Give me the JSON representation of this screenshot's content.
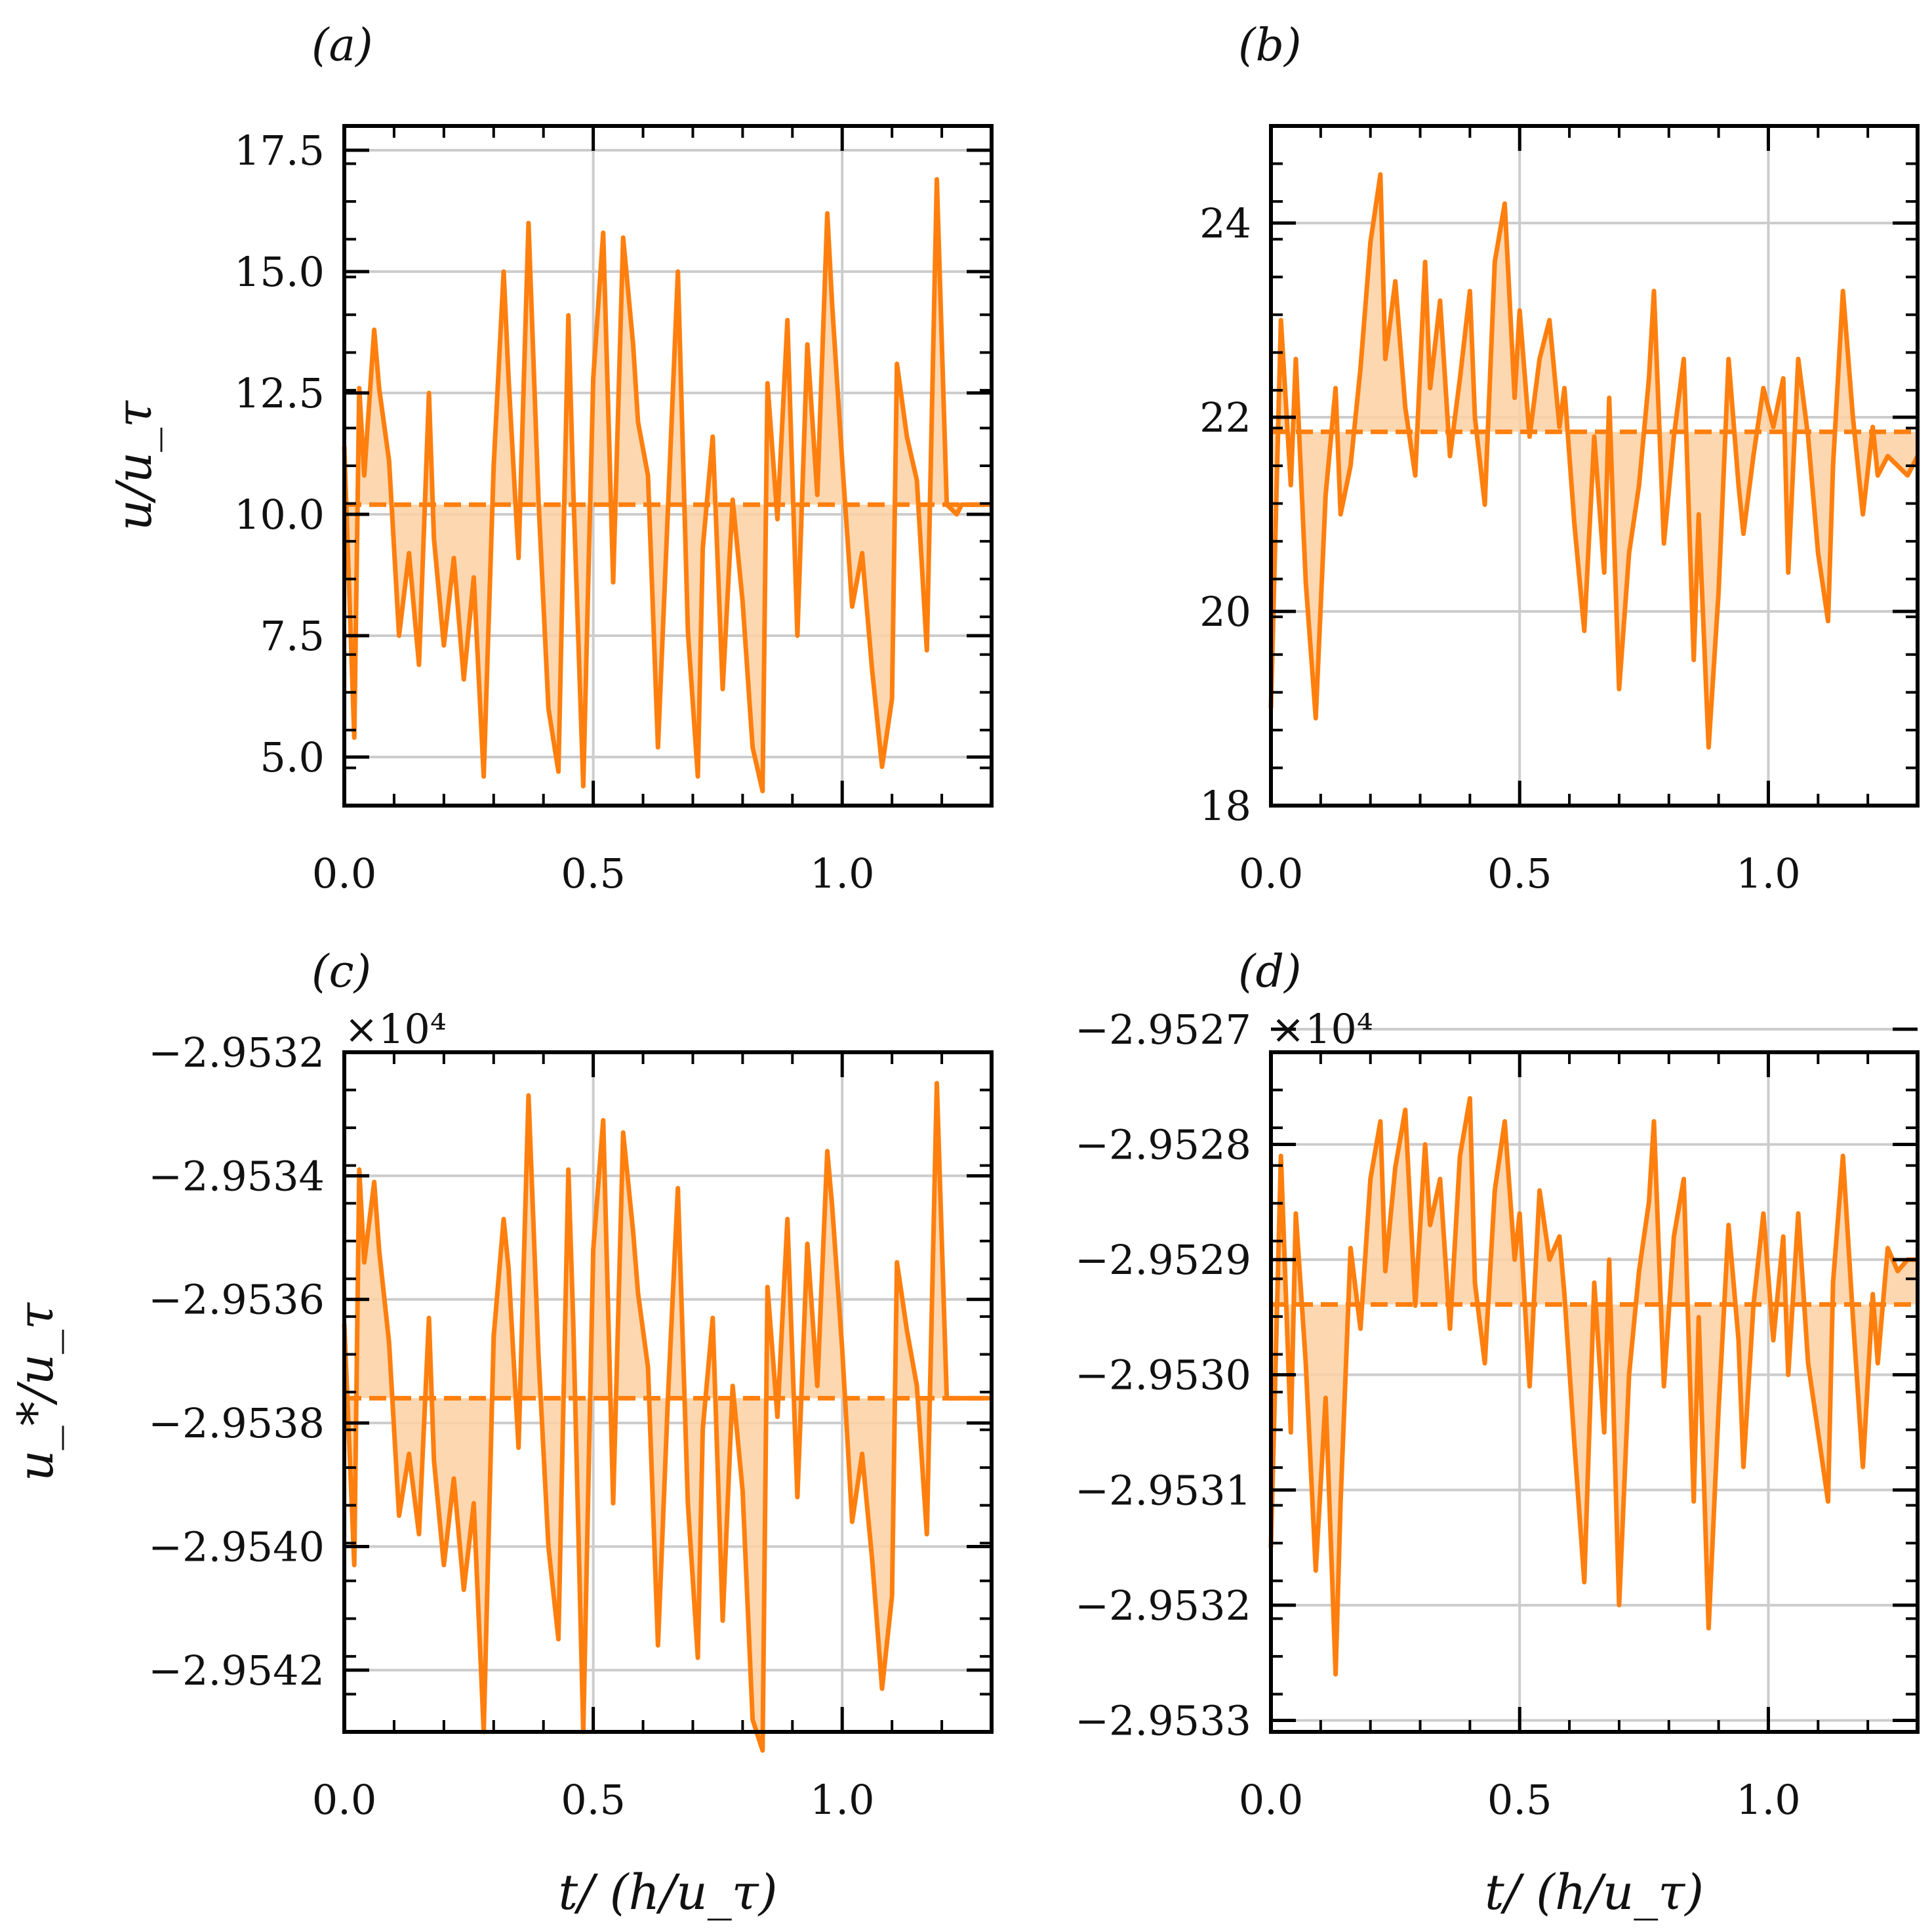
{
  "figure": {
    "series_color": "#ff7f0e",
    "fill_color": "#fdd0a2",
    "grid_color": "#cccccc",
    "frame_color": "#000000"
  },
  "chart_data": [
    {
      "panel": "(a)",
      "type": "line",
      "x_label": "",
      "y_label": "u/u_τ",
      "xlim": [
        0.0,
        1.3
      ],
      "ylim": [
        4.0,
        18.0
      ],
      "x_ticks": [
        0.0,
        0.5,
        1.0
      ],
      "x_tick_labels": [
        "0.0",
        "0.5",
        "1.0"
      ],
      "y_ticks": [
        5.0,
        7.5,
        10.0,
        12.5,
        15.0,
        17.5
      ],
      "y_tick_labels": [
        "5.0",
        "7.5",
        "10.0",
        "12.5",
        "15.0",
        "17.5"
      ],
      "offset_label": "",
      "mean": 10.2,
      "grid": true,
      "series": [
        {
          "name": "u/u_τ",
          "x": [
            0.0,
            0.02,
            0.03,
            0.04,
            0.06,
            0.07,
            0.09,
            0.11,
            0.13,
            0.15,
            0.17,
            0.18,
            0.2,
            0.22,
            0.24,
            0.26,
            0.28,
            0.3,
            0.32,
            0.33,
            0.35,
            0.37,
            0.39,
            0.41,
            0.43,
            0.45,
            0.46,
            0.48,
            0.5,
            0.52,
            0.54,
            0.56,
            0.58,
            0.59,
            0.61,
            0.63,
            0.65,
            0.67,
            0.69,
            0.71,
            0.72,
            0.74,
            0.76,
            0.78,
            0.8,
            0.82,
            0.84,
            0.85,
            0.87,
            0.89,
            0.91,
            0.93,
            0.95,
            0.97,
            0.98,
            1.0,
            1.02,
            1.04,
            1.06,
            1.08,
            1.1,
            1.11,
            1.13,
            1.15,
            1.17,
            1.19,
            1.21,
            1.23,
            1.24,
            1.26,
            1.28,
            1.3
          ],
          "y": [
            11.4,
            5.4,
            12.6,
            10.8,
            13.8,
            12.6,
            11.1,
            7.5,
            9.2,
            6.9,
            12.5,
            9.5,
            7.3,
            9.1,
            6.6,
            8.7,
            4.6,
            11.0,
            15.0,
            12.8,
            9.1,
            16.0,
            10.3,
            6.0,
            4.7,
            14.1,
            10.5,
            4.4,
            12.8,
            15.8,
            8.6,
            15.7,
            13.5,
            11.9,
            10.8,
            5.2,
            10.1,
            15.0,
            7.6,
            4.6,
            9.3,
            11.6,
            6.4,
            10.3,
            8.2,
            5.2,
            4.3,
            12.7,
            9.9,
            14.0,
            7.5,
            13.5,
            10.4,
            16.2,
            14.3,
            11.1,
            8.1,
            9.2,
            6.8,
            4.8,
            6.2,
            13.1,
            11.6,
            10.7,
            7.2,
            16.9,
            10.2,
            10.0,
            10.2,
            10.2,
            10.2,
            10.2
          ]
        }
      ]
    },
    {
      "panel": "(b)",
      "type": "line",
      "x_label": "",
      "y_label": "",
      "xlim": [
        0.0,
        1.3
      ],
      "ylim": [
        18.0,
        25.0
      ],
      "x_ticks": [
        0.0,
        0.5,
        1.0
      ],
      "x_tick_labels": [
        "0.0",
        "0.5",
        "1.0"
      ],
      "y_ticks": [
        18,
        20,
        22,
        24
      ],
      "y_tick_labels": [
        "18",
        "20",
        "22",
        "24"
      ],
      "offset_label": "",
      "mean": 21.85,
      "grid": true,
      "series": [
        {
          "name": "u/u_τ",
          "x": [
            0.0,
            0.02,
            0.04,
            0.05,
            0.07,
            0.09,
            0.11,
            0.13,
            0.14,
            0.16,
            0.18,
            0.2,
            0.22,
            0.23,
            0.25,
            0.27,
            0.29,
            0.31,
            0.32,
            0.34,
            0.36,
            0.38,
            0.4,
            0.41,
            0.43,
            0.45,
            0.47,
            0.49,
            0.5,
            0.52,
            0.54,
            0.56,
            0.58,
            0.59,
            0.61,
            0.63,
            0.65,
            0.67,
            0.68,
            0.7,
            0.72,
            0.74,
            0.76,
            0.77,
            0.79,
            0.81,
            0.83,
            0.85,
            0.86,
            0.88,
            0.9,
            0.92,
            0.94,
            0.95,
            0.97,
            0.99,
            1.01,
            1.03,
            1.04,
            1.06,
            1.08,
            1.1,
            1.12,
            1.13,
            1.15,
            1.17,
            1.19,
            1.21,
            1.22,
            1.24,
            1.26,
            1.28,
            1.3
          ],
          "y": [
            19.0,
            23.0,
            21.3,
            22.6,
            20.3,
            18.9,
            21.2,
            22.3,
            21.0,
            21.5,
            22.5,
            23.8,
            24.5,
            22.6,
            23.4,
            22.1,
            21.4,
            23.6,
            22.3,
            23.2,
            21.6,
            22.4,
            23.3,
            22.0,
            21.1,
            23.6,
            24.2,
            22.2,
            23.1,
            21.8,
            22.6,
            23.0,
            21.9,
            22.3,
            20.9,
            19.8,
            21.8,
            20.4,
            22.2,
            19.2,
            20.6,
            21.3,
            22.4,
            23.3,
            20.7,
            21.8,
            22.6,
            19.5,
            21.0,
            18.6,
            20.2,
            22.6,
            21.3,
            20.8,
            21.6,
            22.3,
            21.9,
            22.4,
            20.4,
            22.6,
            21.8,
            20.6,
            19.9,
            21.5,
            23.3,
            22.0,
            21.0,
            21.9,
            21.4,
            21.6,
            21.5,
            21.4,
            21.6
          ]
        }
      ]
    },
    {
      "panel": "(c)",
      "type": "line",
      "x_label": "t/ (h/u_τ)",
      "y_label": "u_*/u_τ",
      "xlim": [
        0.0,
        1.3
      ],
      "ylim": [
        -2.9543,
        -2.9532
      ],
      "x_ticks": [
        0.0,
        0.5,
        1.0
      ],
      "x_tick_labels": [
        "0.0",
        "0.5",
        "1.0"
      ],
      "y_ticks": [
        -2.9542,
        -2.954,
        -2.9538,
        -2.9536,
        -2.9534,
        -2.9532
      ],
      "y_tick_labels": [
        "−2.9542",
        "−2.9540",
        "−2.9538",
        "−2.9536",
        "−2.9534",
        "−2.9532"
      ],
      "offset_label": "×10⁴",
      "mean": -2.95376,
      "grid": true,
      "series": [
        {
          "name": "u_*/u_τ",
          "x": [
            0.0,
            0.02,
            0.03,
            0.04,
            0.06,
            0.07,
            0.09,
            0.11,
            0.13,
            0.15,
            0.17,
            0.18,
            0.2,
            0.22,
            0.24,
            0.26,
            0.28,
            0.3,
            0.32,
            0.33,
            0.35,
            0.37,
            0.39,
            0.41,
            0.43,
            0.45,
            0.46,
            0.48,
            0.5,
            0.52,
            0.54,
            0.56,
            0.58,
            0.59,
            0.61,
            0.63,
            0.65,
            0.67,
            0.69,
            0.71,
            0.72,
            0.74,
            0.76,
            0.78,
            0.8,
            0.82,
            0.84,
            0.85,
            0.87,
            0.89,
            0.91,
            0.93,
            0.95,
            0.97,
            0.98,
            1.0,
            1.02,
            1.04,
            1.06,
            1.08,
            1.1,
            1.11,
            1.13,
            1.15,
            1.17,
            1.19,
            1.21,
            1.23,
            1.24,
            1.26,
            1.28,
            1.3
          ],
          "y": [
            -2.95364,
            -2.95403,
            -2.95339,
            -2.95354,
            -2.95341,
            -2.95352,
            -2.95367,
            -2.95395,
            -2.95385,
            -2.95398,
            -2.95363,
            -2.95386,
            -2.95403,
            -2.95389,
            -2.95407,
            -2.95393,
            -2.9543,
            -2.95366,
            -2.95347,
            -2.95355,
            -2.95384,
            -2.95327,
            -2.95369,
            -2.954,
            -2.95415,
            -2.95339,
            -2.95364,
            -2.9543,
            -2.95352,
            -2.95331,
            -2.95393,
            -2.95333,
            -2.95349,
            -2.95359,
            -2.95371,
            -2.95416,
            -2.95376,
            -2.95342,
            -2.95393,
            -2.95418,
            -2.95381,
            -2.95363,
            -2.95412,
            -2.95374,
            -2.95391,
            -2.95428,
            -2.95433,
            -2.95358,
            -2.95379,
            -2.95347,
            -2.95392,
            -2.95351,
            -2.95374,
            -2.95336,
            -2.95345,
            -2.95368,
            -2.95396,
            -2.95385,
            -2.95402,
            -2.95423,
            -2.95408,
            -2.95354,
            -2.95365,
            -2.95374,
            -2.95398,
            -2.95325,
            -2.95376,
            -2.95376,
            -2.95376,
            -2.95376,
            -2.95376,
            -2.95376
          ]
        }
      ]
    },
    {
      "panel": "(d)",
      "type": "line",
      "x_label": "t/ (h/u_τ)",
      "y_label": "",
      "xlim": [
        0.0,
        1.3
      ],
      "ylim": [
        -2.95331,
        -2.95272
      ],
      "x_ticks": [
        0.0,
        0.5,
        1.0
      ],
      "x_tick_labels": [
        "0.0",
        "0.5",
        "1.0"
      ],
      "y_ticks": [
        -2.9533,
        -2.9532,
        -2.9531,
        -2.953,
        -2.9529,
        -2.9528,
        -2.9527
      ],
      "y_tick_labels": [
        "−2.9533",
        "−2.9532",
        "−2.9531",
        "−2.9530",
        "−2.9529",
        "−2.9528",
        "−2.9527"
      ],
      "offset_label": "×10⁴",
      "mean": -2.952939,
      "grid": true,
      "series": [
        {
          "name": "u_*/u_τ",
          "x": [
            0.0,
            0.02,
            0.04,
            0.05,
            0.07,
            0.09,
            0.11,
            0.13,
            0.14,
            0.16,
            0.18,
            0.2,
            0.22,
            0.23,
            0.25,
            0.27,
            0.29,
            0.31,
            0.32,
            0.34,
            0.36,
            0.38,
            0.4,
            0.41,
            0.43,
            0.45,
            0.47,
            0.49,
            0.5,
            0.52,
            0.54,
            0.56,
            0.58,
            0.59,
            0.61,
            0.63,
            0.65,
            0.67,
            0.68,
            0.7,
            0.72,
            0.74,
            0.76,
            0.77,
            0.79,
            0.81,
            0.83,
            0.85,
            0.86,
            0.88,
            0.9,
            0.92,
            0.94,
            0.95,
            0.97,
            0.99,
            1.01,
            1.03,
            1.04,
            1.06,
            1.08,
            1.1,
            1.12,
            1.13,
            1.15,
            1.17,
            1.19,
            1.21,
            1.22,
            1.24,
            1.26,
            1.28,
            1.3
          ],
          "y": [
            -2.95315,
            -2.95281,
            -2.95305,
            -2.95286,
            -2.95299,
            -2.95317,
            -2.95302,
            -2.95326,
            -2.95311,
            -2.95289,
            -2.95296,
            -2.95283,
            -2.95278,
            -2.95291,
            -2.95282,
            -2.95277,
            -2.95294,
            -2.9528,
            -2.95287,
            -2.95283,
            -2.95296,
            -2.95281,
            -2.95276,
            -2.95292,
            -2.95299,
            -2.95284,
            -2.95278,
            -2.9529,
            -2.95286,
            -2.95301,
            -2.95284,
            -2.9529,
            -2.95288,
            -2.95293,
            -2.95306,
            -2.95318,
            -2.95292,
            -2.95305,
            -2.9529,
            -2.9532,
            -2.953,
            -2.95291,
            -2.95285,
            -2.95278,
            -2.95301,
            -2.95288,
            -2.95283,
            -2.95311,
            -2.95295,
            -2.95322,
            -2.95303,
            -2.95287,
            -2.95297,
            -2.95308,
            -2.95294,
            -2.95286,
            -2.95297,
            -2.95288,
            -2.953,
            -2.95286,
            -2.95299,
            -2.95305,
            -2.95311,
            -2.95292,
            -2.95281,
            -2.95295,
            -2.95308,
            -2.95293,
            -2.95299,
            -2.95289,
            -2.95291,
            -2.9529,
            -2.9529
          ]
        }
      ]
    }
  ]
}
